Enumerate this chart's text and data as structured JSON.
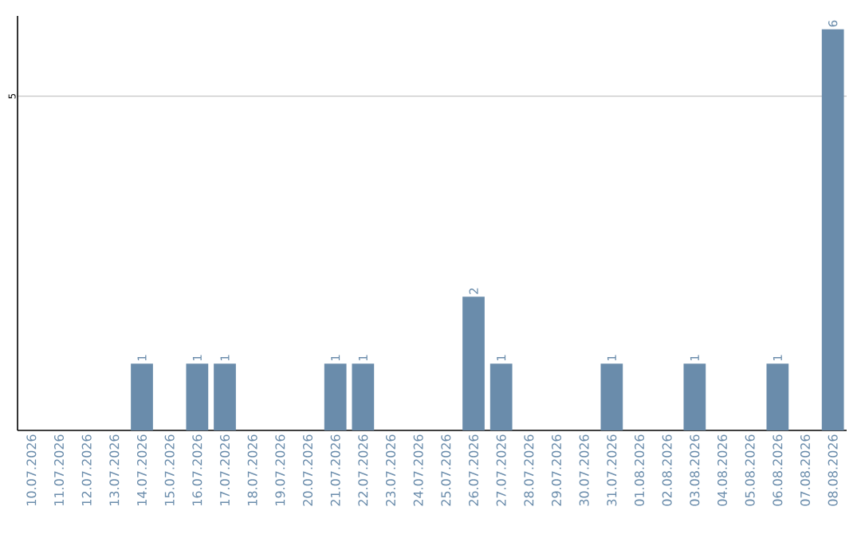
{
  "chart_data": {
    "type": "bar",
    "categories": [
      "10.07.2026",
      "11.07.2026",
      "12.07.2026",
      "13.07.2026",
      "14.07.2026",
      "15.07.2026",
      "16.07.2026",
      "17.07.2026",
      "18.07.2026",
      "19.07.2026",
      "20.07.2026",
      "21.07.2026",
      "22.07.2026",
      "23.07.2026",
      "24.07.2026",
      "25.07.2026",
      "26.07.2026",
      "27.07.2026",
      "28.07.2026",
      "29.07.2026",
      "30.07.2026",
      "31.07.2026",
      "01.08.2026",
      "02.08.2026",
      "03.08.2026",
      "04.08.2026",
      "05.08.2026",
      "06.08.2026",
      "07.08.2026",
      "08.08.2026"
    ],
    "values": [
      0,
      0,
      0,
      0,
      1,
      0,
      1,
      1,
      0,
      0,
      0,
      1,
      1,
      0,
      0,
      0,
      2,
      1,
      0,
      0,
      0,
      1,
      0,
      0,
      1,
      0,
      0,
      1,
      0,
      6
    ],
    "value_labels": [
      null,
      null,
      null,
      null,
      "1",
      null,
      "1",
      "1",
      null,
      null,
      null,
      "1",
      "1",
      null,
      null,
      null,
      "2",
      "1",
      null,
      null,
      null,
      "1",
      null,
      null,
      "1",
      null,
      null,
      "1",
      null,
      "6"
    ],
    "color": "#6a8cab",
    "ylim": [
      0,
      6.2
    ],
    "yticks": [
      5
    ],
    "grid": "y"
  }
}
